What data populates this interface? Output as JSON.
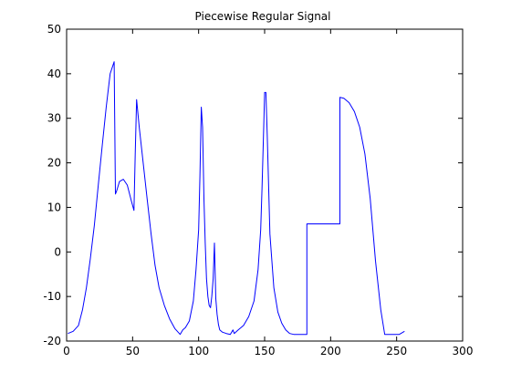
{
  "chart_data": {
    "type": "line",
    "title": "Piecewise Regular Signal",
    "xlabel": "",
    "ylabel": "",
    "xlim": [
      0,
      300
    ],
    "ylim": [
      -20,
      50
    ],
    "x_ticks": [
      0,
      50,
      100,
      150,
      200,
      250,
      300
    ],
    "y_ticks": [
      -20,
      -10,
      0,
      10,
      20,
      30,
      40,
      50
    ],
    "x_tick_labels": [
      "0",
      "50",
      "100",
      "150",
      "200",
      "250",
      "300"
    ],
    "y_tick_labels": [
      "-20",
      "-10",
      "0",
      "10",
      "20",
      "30",
      "40",
      "50"
    ],
    "grid": false,
    "line_color": "#0000ff",
    "series": [
      {
        "x": [
          1,
          5,
          9,
          12,
          15,
          18,
          21,
          24,
          27,
          30,
          33,
          36,
          37,
          38,
          40,
          43,
          46,
          49,
          51,
          52,
          53,
          55,
          58,
          61,
          64,
          67,
          70,
          74,
          78,
          82,
          86,
          88,
          90,
          93,
          96,
          98,
          100,
          101,
          102,
          103,
          104,
          105,
          106,
          107,
          108,
          109,
          110,
          111,
          112,
          113,
          114,
          115,
          116,
          118,
          121,
          124,
          126,
          127,
          130,
          134,
          138,
          142,
          145,
          147,
          148,
          149,
          150,
          151,
          152,
          154,
          157,
          160,
          163,
          166,
          169,
          172,
          175,
          178,
          181,
          182,
          182,
          185,
          190,
          195,
          200,
          205,
          206,
          207,
          207,
          210,
          214,
          218,
          222,
          226,
          230,
          234,
          238,
          241,
          242,
          244,
          248,
          252,
          256
        ],
        "y": [
          -18.3,
          -17.8,
          -16.5,
          -13,
          -8,
          -1.5,
          6,
          15,
          24,
          32.5,
          40,
          42.7,
          13,
          13.8,
          15.8,
          16.3,
          15,
          11.5,
          9.3,
          22,
          34.2,
          28,
          20,
          12,
          4,
          -3,
          -8,
          -12,
          -15,
          -17.2,
          -18.5,
          -17.5,
          -17,
          -15.5,
          -11,
          -4,
          5,
          17,
          32.5,
          28,
          12,
          2,
          -6,
          -10,
          -12,
          -12.5,
          -10,
          -6,
          2,
          -10.5,
          -14,
          -16.3,
          -17.5,
          -18,
          -18.3,
          -18.5,
          -17.5,
          -18.3,
          -17.5,
          -16.5,
          -14.5,
          -11,
          -4,
          5,
          14,
          25,
          35.8,
          35.8,
          26,
          4,
          -8,
          -13.5,
          -16,
          -17.5,
          -18.3,
          -18.5,
          -18.5,
          -18.5,
          -18.5,
          -18.5,
          6.3,
          6.3,
          6.3,
          6.3,
          6.3,
          6.3,
          6.3,
          6.3,
          34.7,
          34.5,
          33.5,
          31.5,
          28,
          22,
          12,
          -2,
          -13,
          -18.5,
          -18.5,
          -18.5,
          -18.5,
          -18.5,
          -17.8
        ]
      }
    ]
  }
}
